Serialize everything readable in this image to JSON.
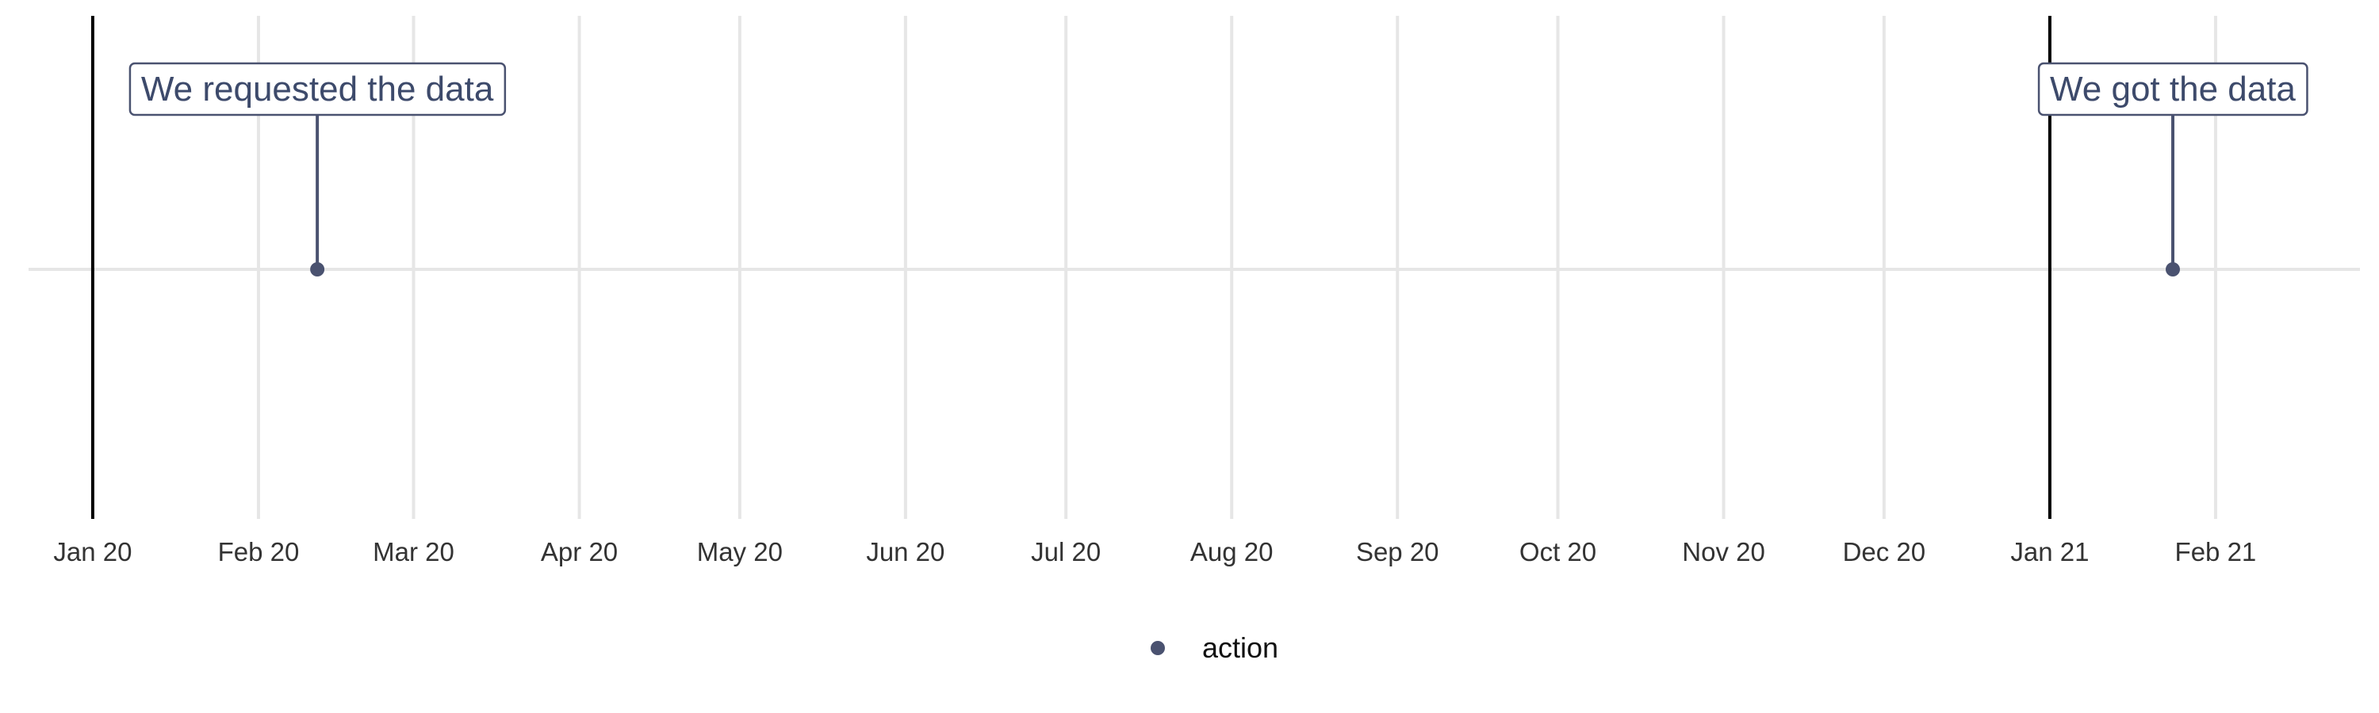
{
  "chart_data": {
    "type": "scatter",
    "title": "",
    "xlabel": "",
    "ylabel": "",
    "x_axis": {
      "type": "date",
      "range": [
        "2019-12-20",
        "2021-02-28"
      ],
      "ticks": [
        {
          "date": "2020-01-01",
          "label": "Jan 20"
        },
        {
          "date": "2020-02-01",
          "label": "Feb 20"
        },
        {
          "date": "2020-03-01",
          "label": "Mar 20"
        },
        {
          "date": "2020-04-01",
          "label": "Apr 20"
        },
        {
          "date": "2020-05-01",
          "label": "May 20"
        },
        {
          "date": "2020-06-01",
          "label": "Jun 20"
        },
        {
          "date": "2020-07-01",
          "label": "Jul 20"
        },
        {
          "date": "2020-08-01",
          "label": "Aug 20"
        },
        {
          "date": "2020-09-01",
          "label": "Sep 20"
        },
        {
          "date": "2020-10-01",
          "label": "Oct 20"
        },
        {
          "date": "2020-11-01",
          "label": "Nov 20"
        },
        {
          "date": "2020-12-01",
          "label": "Dec 20"
        },
        {
          "date": "2021-01-01",
          "label": "Jan 21"
        },
        {
          "date": "2021-02-01",
          "label": "Feb 21"
        }
      ]
    },
    "grid": true,
    "year_markers": [
      "2020-01-01",
      "2021-01-01"
    ],
    "series": [
      {
        "name": "action",
        "color": "#4a5270",
        "points": [
          {
            "date": "2020-02-12",
            "label": "We requested the data"
          },
          {
            "date": "2021-01-24",
            "label": "We got the data"
          }
        ]
      }
    ],
    "legend": {
      "position": "bottom",
      "entries": [
        "action"
      ]
    }
  },
  "colors": {
    "point": "#4a5270",
    "annotation_text": "#3d4a6b",
    "grid": "#e6e6e6",
    "year_marker": "#000000"
  }
}
